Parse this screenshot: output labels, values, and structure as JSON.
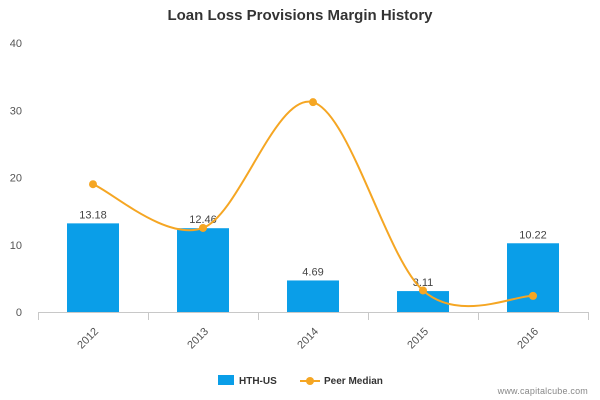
{
  "chart_data": {
    "type": "bar",
    "title": "Loan Loss Provisions Margin History",
    "categories": [
      "2012",
      "2013",
      "2014",
      "2015",
      "2016"
    ],
    "ylim": [
      0,
      40
    ],
    "yticks": [
      0,
      10,
      20,
      30,
      40
    ],
    "grid": false,
    "legend_position": "bottom",
    "series": [
      {
        "name": "HTH-US",
        "type": "bar",
        "color": "#0a9ee8",
        "values": [
          13.18,
          12.46,
          4.69,
          3.11,
          10.22
        ],
        "labels": [
          "13.18",
          "12.46",
          "4.69",
          "3.11",
          "10.22"
        ]
      },
      {
        "name": "Peer Median",
        "type": "line",
        "color": "#f5a623",
        "values": [
          19.0,
          12.5,
          31.2,
          3.2,
          2.4
        ]
      }
    ]
  },
  "watermark": "www.capitalcube.com"
}
